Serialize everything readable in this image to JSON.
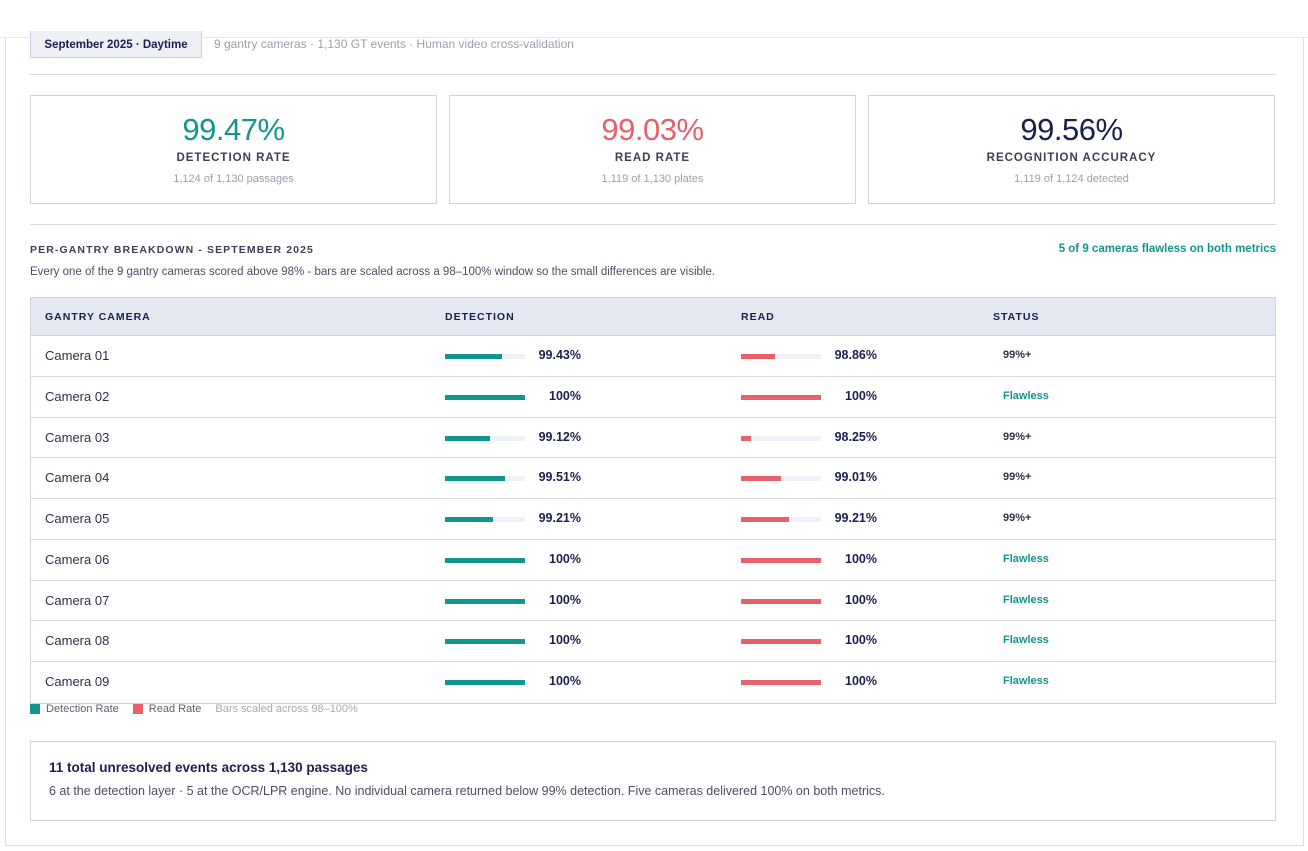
{
  "header": {
    "period_chip": "September 2025 · Daytime",
    "meta": "9 gantry cameras · 1,130 GT events · Human video cross-validation"
  },
  "kpis": [
    {
      "value": "99.47%",
      "label": "DETECTION RATE",
      "sub": "1,124 of 1,130 passages",
      "color": "#12958f"
    },
    {
      "value": "99.03%",
      "label": "READ RATE",
      "sub": "1,119 of 1,130 plates",
      "color": "#e8606a"
    },
    {
      "value": "99.56%",
      "label": "RECOGNITION ACCURACY",
      "sub": "1,119 of 1,124 detected",
      "color": "#1a1f4f"
    }
  ],
  "breakdown": {
    "title": "PER-GANTRY BREAKDOWN - SEPTEMBER 2025",
    "flag": "5 of 9 cameras flawless on both metrics",
    "description": "Every one of the 9 gantry cameras scored above 98% - bars are scaled across a 98–100% window so the small differences are visible."
  },
  "table": {
    "columns": [
      "GANTRY CAMERA",
      "DETECTION",
      "READ",
      "STATUS"
    ],
    "scale_min": 98,
    "scale_max": 100,
    "detection_color": "#12958f",
    "read_color": "#e8606a",
    "rows": [
      {
        "camera": "Camera 01",
        "detection": 99.43,
        "detection_label": "99.43%",
        "read": 98.86,
        "read_label": "98.86%",
        "status": "99%+"
      },
      {
        "camera": "Camera 02",
        "detection": 100,
        "detection_label": "100%",
        "read": 100,
        "read_label": "100%",
        "status": "Flawless"
      },
      {
        "camera": "Camera 03",
        "detection": 99.12,
        "detection_label": "99.12%",
        "read": 98.25,
        "read_label": "98.25%",
        "status": "99%+"
      },
      {
        "camera": "Camera 04",
        "detection": 99.51,
        "detection_label": "99.51%",
        "read": 99.01,
        "read_label": "99.01%",
        "status": "99%+"
      },
      {
        "camera": "Camera 05",
        "detection": 99.21,
        "detection_label": "99.21%",
        "read": 99.21,
        "read_label": "99.21%",
        "status": "99%+"
      },
      {
        "camera": "Camera 06",
        "detection": 100,
        "detection_label": "100%",
        "read": 100,
        "read_label": "100%",
        "status": "Flawless"
      },
      {
        "camera": "Camera 07",
        "detection": 100,
        "detection_label": "100%",
        "read": 100,
        "read_label": "100%",
        "status": "Flawless"
      },
      {
        "camera": "Camera 08",
        "detection": 100,
        "detection_label": "100%",
        "read": 100,
        "read_label": "100%",
        "status": "Flawless"
      },
      {
        "camera": "Camera 09",
        "detection": 100,
        "detection_label": "100%",
        "read": 100,
        "read_label": "100%",
        "status": "Flawless"
      }
    ]
  },
  "legend": {
    "detection": "Detection Rate",
    "read": "Read Rate",
    "note": "Bars scaled across 98–100%"
  },
  "summary": {
    "title": "11 total unresolved events across 1,130 passages",
    "text": "6 at the detection layer · 5 at the OCR/LPR engine. No individual camera returned below 99% detection. Five cameras delivered 100% on both metrics."
  }
}
